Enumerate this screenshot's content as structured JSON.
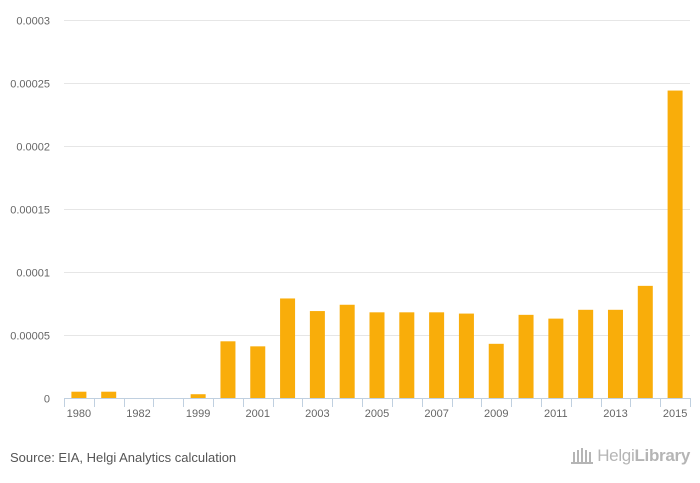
{
  "chart_data": {
    "type": "bar",
    "categories": [
      "1980",
      "1981",
      "1982",
      "1983",
      "1999",
      "2000",
      "2001",
      "2002",
      "2003",
      "2004",
      "2005",
      "2006",
      "2007",
      "2008",
      "2009",
      "2010",
      "2011",
      "2012",
      "2013",
      "2014",
      "2015"
    ],
    "values": [
      5e-06,
      5e-06,
      0,
      0,
      3e-06,
      4.5e-05,
      4.1e-05,
      7.9e-05,
      6.9e-05,
      7.4e-05,
      6.8e-05,
      6.8e-05,
      6.8e-05,
      6.7e-05,
      4.3e-05,
      6.6e-05,
      6.3e-05,
      7e-05,
      7e-05,
      8.9e-05,
      0.000244
    ],
    "x_tick_labels": [
      "1980",
      "",
      "1982",
      "",
      "1999",
      "",
      "2001",
      "",
      "2003",
      "",
      "2005",
      "",
      "2007",
      "",
      "2009",
      "",
      "2011",
      "",
      "2013",
      "",
      "2015"
    ],
    "y_tick_labels": [
      "0",
      "0.00005",
      "0.0001",
      "0.00015",
      "0.0002",
      "0.00025",
      "0.0003"
    ],
    "y_ticks": [
      0,
      5e-05,
      0.0001,
      0.00015,
      0.0002,
      0.00025,
      0.0003
    ],
    "ylim": [
      0,
      0.0003
    ],
    "title": "",
    "xlabel": "",
    "ylabel": "",
    "bar_color": "#f9ad0a",
    "grid": true
  },
  "footer": {
    "source": "Source: EIA, Helgi Analytics calculation",
    "logo_light": "Helgi",
    "logo_bold": "Library"
  },
  "colors": {
    "grid": "#e6e6e6",
    "axis": "#c0d0e0",
    "tick_text": "#666666"
  }
}
